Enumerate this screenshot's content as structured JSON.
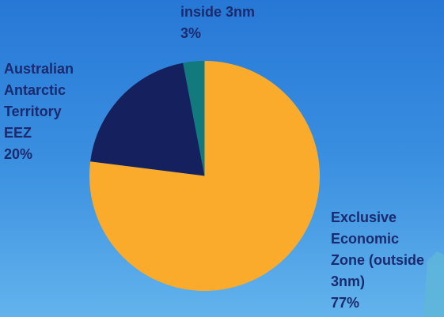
{
  "chart_data": {
    "type": "pie",
    "categories": [
      "Exclusive Economic Zone (outside 3nm)",
      "Australian Antarctic Territory EEZ",
      "inside 3nm"
    ],
    "values": [
      77,
      20,
      3
    ],
    "value_labels": [
      "77%",
      "20%",
      "3%"
    ],
    "colors": [
      "#fbab2c",
      "#15205f",
      "#127a7c"
    ]
  }
}
